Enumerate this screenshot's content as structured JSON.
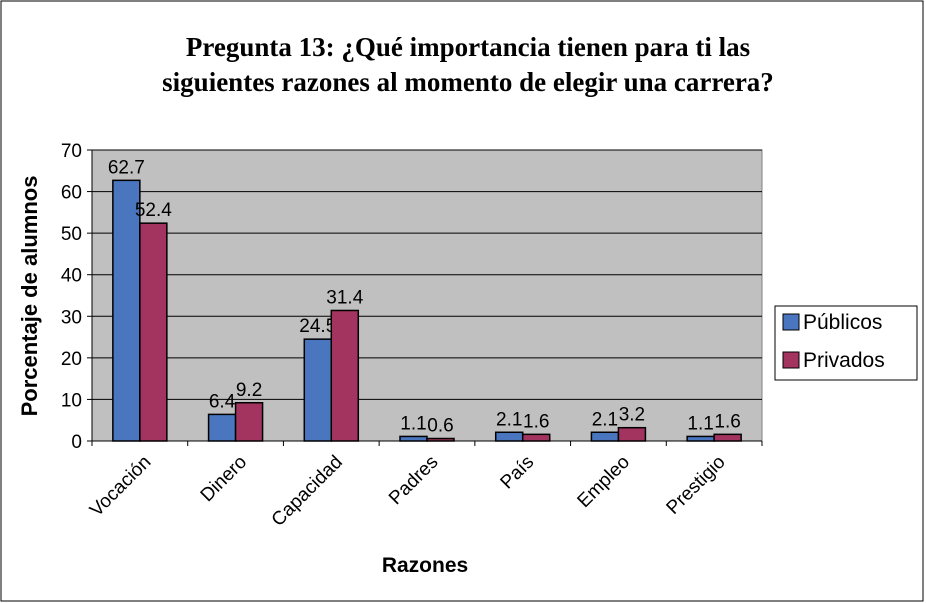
{
  "chart_data": {
    "type": "bar",
    "title": [
      "Pregunta 13: ¿Qué importancia tienen para ti las",
      "siguientes razones al momento de elegir una carrera?"
    ],
    "x_label": "Razones",
    "y_label": "Porcentaje de alumnos",
    "categories": [
      "Vocación",
      "Dinero",
      "Capacidad",
      "Padres",
      "País",
      "Empleo",
      "Prestigio"
    ],
    "series": [
      {
        "name": "Públicos",
        "color": "#4a76c0",
        "values": [
          62.7,
          6.4,
          24.5,
          1.1,
          2.1,
          2.1,
          1.1
        ]
      },
      {
        "name": "Privados",
        "color": "#a3345f",
        "values": [
          52.4,
          9.2,
          31.4,
          0.6,
          1.6,
          3.2,
          1.6
        ]
      }
    ],
    "ylim": [
      0,
      70
    ],
    "yticks": [
      0,
      10,
      20,
      30,
      40,
      50,
      60,
      70
    ],
    "grid": true,
    "legend": "right"
  }
}
